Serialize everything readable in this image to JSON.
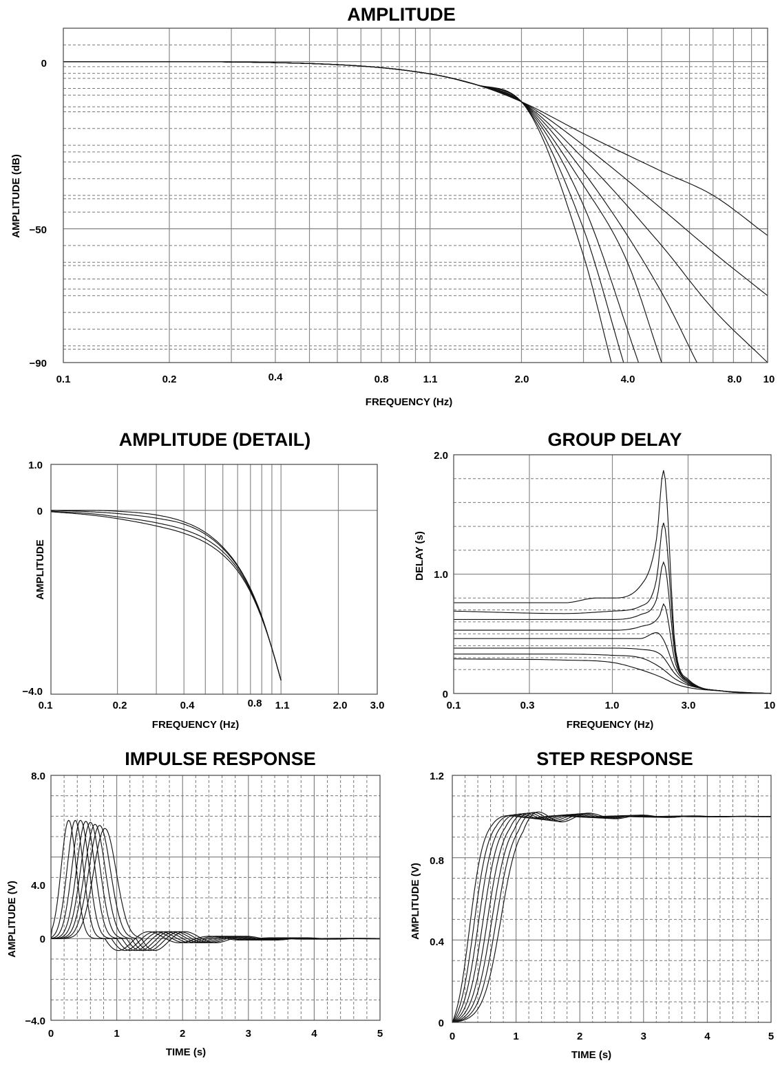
{
  "chart_data": [
    {
      "id": "amplitude",
      "type": "line",
      "title": "AMPLITUDE",
      "xlabel": "FREQUENCY (Hz)",
      "ylabel": "AMPLITUDE (dB)",
      "x_scale": "log",
      "xlim": [
        0.1,
        10
      ],
      "ylim": [
        -90,
        10
      ],
      "x_ticks": [
        "0.1",
        "0.2",
        "0.4",
        "0.8",
        "1.1",
        "2.0",
        "4.0",
        "8.0",
        "10"
      ],
      "y_ticks": [
        "0",
        "−50",
        "−90"
      ],
      "legend": "none",
      "series": [
        {
          "order": 2,
          "x": [
            0.1,
            0.2,
            0.4,
            0.6,
            0.8,
            1.0,
            1.2,
            1.5,
            2.0,
            3.0,
            5.0,
            7.0,
            10.0
          ],
          "y": [
            0,
            0,
            -0.3,
            -0.9,
            -1.8,
            -3,
            -4.4,
            -7,
            -12,
            -21.5,
            -32.8,
            -40,
            -52
          ]
        },
        {
          "order": 3,
          "x": [
            0.1,
            0.2,
            0.4,
            0.6,
            0.8,
            1.0,
            1.2,
            1.5,
            2.0,
            3.0,
            5.0,
            7.0,
            10.0
          ],
          "y": [
            0,
            0,
            -0.3,
            -0.9,
            -1.8,
            -3,
            -4.4,
            -7,
            -12,
            -25,
            -44,
            -57,
            -70
          ]
        },
        {
          "order": 4,
          "x": [
            0.1,
            0.2,
            0.4,
            0.6,
            0.8,
            1.0,
            1.2,
            1.5,
            2.0,
            3.0,
            5.0,
            7.0,
            10.0
          ],
          "y": [
            0,
            0,
            -0.3,
            -0.9,
            -1.8,
            -3,
            -4.4,
            -7,
            -12,
            -29,
            -55,
            -74,
            -90
          ]
        },
        {
          "order": 5,
          "x": [
            0.1,
            0.2,
            0.4,
            0.6,
            0.8,
            1.0,
            1.2,
            1.5,
            2.0,
            3.0,
            5.0,
            6.3
          ],
          "y": [
            0,
            0,
            -0.3,
            -0.9,
            -1.8,
            -3,
            -4.4,
            -7,
            -12,
            -33,
            -69,
            -90
          ]
        },
        {
          "order": 6,
          "x": [
            0.1,
            0.2,
            0.4,
            0.6,
            0.8,
            1.0,
            1.2,
            1.5,
            2.0,
            3.0,
            4.0,
            5.0
          ],
          "y": [
            0,
            0,
            -0.3,
            -0.9,
            -1.8,
            -3,
            -4.4,
            -7,
            -12,
            -37,
            -60,
            -90
          ]
        },
        {
          "order": 7,
          "x": [
            0.1,
            0.2,
            0.4,
            0.6,
            0.8,
            1.0,
            1.2,
            1.5,
            2.0,
            3.0,
            4.3
          ],
          "y": [
            0,
            0,
            -0.3,
            -0.9,
            -1.8,
            -3,
            -4.4,
            -7,
            -12,
            -43,
            -90
          ]
        },
        {
          "order": 8,
          "x": [
            0.1,
            0.2,
            0.4,
            0.6,
            0.8,
            1.0,
            1.2,
            1.5,
            2.0,
            3.0,
            3.9
          ],
          "y": [
            0,
            0,
            -0.3,
            -0.9,
            -1.8,
            -3,
            -4.4,
            -7,
            -12,
            -50,
            -90
          ]
        },
        {
          "order": 9,
          "x": [
            0.1,
            0.2,
            0.4,
            0.6,
            0.8,
            1.0,
            1.2,
            1.5,
            2.0,
            3.0,
            3.6
          ],
          "y": [
            0,
            0,
            -0.3,
            -0.9,
            -1.8,
            -3,
            -4.4,
            -7,
            -12,
            -58,
            -90
          ]
        }
      ]
    },
    {
      "id": "amplitude-detail",
      "type": "line",
      "title": "AMPLITUDE (DETAIL)",
      "xlabel": "FREQUENCY (Hz)",
      "ylabel": "AMPLITUDE",
      "x_scale": "log",
      "xlim": [
        0.1,
        3.0
      ],
      "ylim": [
        -4.0,
        1.0
      ],
      "x_ticks": [
        "0.1",
        "0.2",
        "0.4",
        "0.8",
        "1.1",
        "2.0",
        "3.0"
      ],
      "y_ticks": [
        "1.0",
        "0",
        "−4.0"
      ],
      "legend": "none",
      "series": [
        {
          "x": [
            0.1,
            0.15,
            0.2,
            0.3,
            0.4,
            0.5,
            0.6,
            0.7,
            0.8,
            0.9,
            1.0,
            1.1
          ],
          "y": [
            0,
            0,
            -0.02,
            -0.1,
            -0.25,
            -0.48,
            -0.8,
            -1.2,
            -1.7,
            -2.3,
            -3.0,
            -3.7
          ]
        },
        {
          "x": [
            0.1,
            0.15,
            0.2,
            0.3,
            0.4,
            0.5,
            0.6,
            0.7,
            0.8,
            0.9,
            1.0,
            1.1
          ],
          "y": [
            0,
            -0.03,
            -0.07,
            -0.17,
            -0.3,
            -0.52,
            -0.83,
            -1.22,
            -1.72,
            -2.32,
            -3.0,
            -3.7
          ]
        },
        {
          "x": [
            0.1,
            0.15,
            0.2,
            0.3,
            0.4,
            0.5,
            0.6,
            0.7,
            0.8,
            0.9,
            1.0,
            1.1
          ],
          "y": [
            -0.02,
            -0.07,
            -0.14,
            -0.27,
            -0.42,
            -0.62,
            -0.9,
            -1.27,
            -1.75,
            -2.33,
            -3.0,
            -3.7
          ]
        },
        {
          "x": [
            0.1,
            0.15,
            0.2,
            0.3,
            0.4,
            0.5,
            0.6,
            0.7,
            0.8,
            0.9,
            1.0,
            1.1
          ],
          "y": [
            -0.03,
            -0.1,
            -0.18,
            -0.34,
            -0.5,
            -0.7,
            -0.97,
            -1.32,
            -1.78,
            -2.35,
            -3.0,
            -3.7
          ]
        }
      ]
    },
    {
      "id": "group-delay",
      "type": "line",
      "title": "GROUP DELAY",
      "xlabel": "FREQUENCY (Hz)",
      "ylabel": "DELAY (s)",
      "x_scale": "log",
      "xlim": [
        0.1,
        10
      ],
      "ylim": [
        0,
        2.0
      ],
      "x_ticks": [
        "0.1",
        "0.3",
        "1.0",
        "3.0",
        "10"
      ],
      "y_ticks": [
        "2.0",
        "1.0",
        "0"
      ],
      "legend": "none",
      "series": [
        {
          "x": [
            0.1,
            0.5,
            1.0,
            1.5,
            2.0,
            2.5,
            3.0,
            5.0,
            10.0
          ],
          "y": [
            0.29,
            0.28,
            0.26,
            0.2,
            0.14,
            0.08,
            0.05,
            0.02,
            0
          ]
        },
        {
          "x": [
            0.1,
            0.5,
            1.0,
            1.5,
            2.0,
            2.5,
            3.0,
            5.0,
            10.0
          ],
          "y": [
            0.33,
            0.33,
            0.32,
            0.3,
            0.22,
            0.12,
            0.07,
            0.02,
            0
          ]
        },
        {
          "x": [
            0.1,
            0.5,
            1.0,
            1.5,
            2.0,
            2.5,
            3.0,
            5.0,
            10.0
          ],
          "y": [
            0.38,
            0.38,
            0.38,
            0.37,
            0.33,
            0.16,
            0.08,
            0.02,
            0
          ]
        },
        {
          "x": [
            0.1,
            0.5,
            1.0,
            1.5,
            1.9,
            2.1,
            2.5,
            3.0,
            5.0,
            10.0
          ],
          "y": [
            0.46,
            0.46,
            0.46,
            0.46,
            0.51,
            0.45,
            0.2,
            0.09,
            0.02,
            0
          ]
        },
        {
          "x": [
            0.1,
            0.5,
            1.0,
            1.5,
            2.0,
            2.1,
            2.5,
            3.0,
            5.0,
            10.0
          ],
          "y": [
            0.53,
            0.53,
            0.53,
            0.56,
            0.66,
            0.75,
            0.25,
            0.1,
            0.02,
            0
          ]
        },
        {
          "x": [
            0.1,
            0.5,
            1.0,
            1.5,
            1.9,
            2.1,
            2.5,
            3.0,
            5.0,
            10.0
          ],
          "y": [
            0.62,
            0.62,
            0.62,
            0.66,
            0.79,
            1.1,
            0.3,
            0.1,
            0.02,
            0
          ]
        },
        {
          "x": [
            0.1,
            0.5,
            1.0,
            1.5,
            1.9,
            2.1,
            2.5,
            3.0,
            5.0,
            10.0
          ],
          "y": [
            0.69,
            0.67,
            0.69,
            0.73,
            0.96,
            1.43,
            0.34,
            0.11,
            0.02,
            0
          ]
        },
        {
          "x": [
            0.1,
            0.5,
            0.8,
            1.0,
            1.5,
            1.9,
            2.1,
            2.5,
            3.0,
            5.0,
            10.0
          ],
          "y": [
            0.76,
            0.76,
            0.8,
            0.8,
            0.9,
            1.3,
            1.87,
            0.37,
            0.12,
            0.02,
            0
          ]
        }
      ]
    },
    {
      "id": "impulse-response",
      "type": "line",
      "title": "IMPULSE RESPONSE",
      "xlabel": "TIME (s)",
      "ylabel": "AMPLITUDE (V)",
      "xlim": [
        0,
        5
      ],
      "ylim": [
        -4.0,
        8.0
      ],
      "x_ticks": [
        "0",
        "1",
        "2",
        "3",
        "4",
        "5"
      ],
      "y_ticks": [
        "8.0",
        "4.0",
        "0",
        "−4.0"
      ],
      "legend": "none",
      "peak_times": [
        0.27,
        0.37,
        0.45,
        0.53,
        0.6,
        0.67,
        0.74,
        0.82
      ],
      "peak_values": [
        5.8,
        5.8,
        5.8,
        5.75,
        5.7,
        5.6,
        5.55,
        5.4
      ]
    },
    {
      "id": "step-response",
      "type": "line",
      "title": "STEP RESPONSE",
      "xlabel": "TIME (s)",
      "ylabel": "AMPLITUDE (V)",
      "xlim": [
        0,
        5
      ],
      "ylim": [
        0,
        1.2
      ],
      "x_ticks": [
        "0",
        "1",
        "2",
        "3",
        "4",
        "5"
      ],
      "y_ticks": [
        "1.2",
        "0.8",
        "0.4",
        "0"
      ],
      "legend": "none",
      "half_rise_times": [
        0.27,
        0.34,
        0.41,
        0.48,
        0.55,
        0.62,
        0.69,
        0.76
      ],
      "final_value": 1.0
    }
  ]
}
